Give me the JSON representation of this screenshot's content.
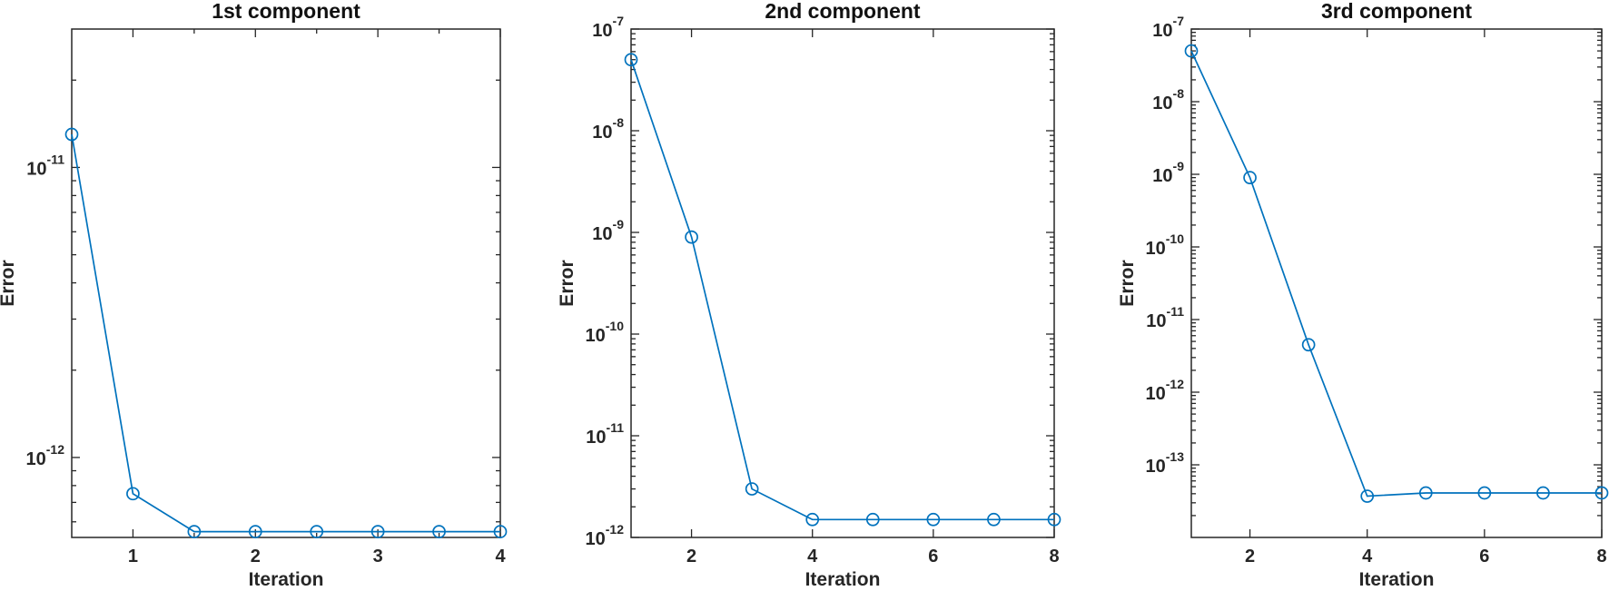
{
  "chart_data": [
    {
      "type": "line",
      "title": "1st component",
      "xlabel": "Iteration",
      "ylabel": "Error",
      "yscale": "log",
      "xlim": [
        0.5,
        4
      ],
      "ylim": [
        5.3e-13,
        3e-11
      ],
      "xticks": [
        "1",
        "2",
        "3",
        "4"
      ],
      "yticks": [
        {
          "base": "10",
          "exp": "-12"
        },
        {
          "base": "10",
          "exp": "-11"
        }
      ],
      "grid": false,
      "color": "#0072BD",
      "marker": "circle",
      "series": [
        {
          "x": [
            0.5,
            1,
            1.5,
            2,
            2.5,
            3,
            3.5,
            4
          ],
          "y": [
            1.3e-11,
            7.5e-13,
            5.55e-13,
            5.55e-13,
            5.55e-13,
            5.55e-13,
            5.55e-13,
            5.55e-13
          ]
        }
      ]
    },
    {
      "type": "line",
      "title": "2nd component",
      "xlabel": "Iteration",
      "ylabel": "Error",
      "yscale": "log",
      "xlim": [
        1,
        8
      ],
      "ylim": [
        1e-12,
        1e-07
      ],
      "xticks": [
        "2",
        "4",
        "6",
        "8"
      ],
      "yticks": [
        {
          "base": "10",
          "exp": "-12"
        },
        {
          "base": "10",
          "exp": "-11"
        },
        {
          "base": "10",
          "exp": "-10"
        },
        {
          "base": "10",
          "exp": "-9"
        },
        {
          "base": "10",
          "exp": "-8"
        },
        {
          "base": "10",
          "exp": "-7"
        }
      ],
      "grid": false,
      "color": "#0072BD",
      "marker": "circle",
      "series": [
        {
          "x": [
            1,
            2,
            3,
            4,
            5,
            6,
            7,
            8
          ],
          "y": [
            5e-08,
            9e-10,
            3e-12,
            1.5e-12,
            1.5e-12,
            1.5e-12,
            1.5e-12,
            1.5e-12
          ]
        }
      ]
    },
    {
      "type": "line",
      "title": "3rd component",
      "xlabel": "Iteration",
      "ylabel": "Error",
      "yscale": "log",
      "xlim": [
        1,
        8
      ],
      "ylim": [
        1e-14,
        1e-07
      ],
      "xticks": [
        "2",
        "4",
        "6",
        "8"
      ],
      "yticks": [
        {
          "base": "10",
          "exp": "-13"
        },
        {
          "base": "10",
          "exp": "-12"
        },
        {
          "base": "10",
          "exp": "-11"
        },
        {
          "base": "10",
          "exp": "-10"
        },
        {
          "base": "10",
          "exp": "-9"
        },
        {
          "base": "10",
          "exp": "-8"
        },
        {
          "base": "10",
          "exp": "-7"
        }
      ],
      "grid": false,
      "color": "#0072BD",
      "marker": "circle",
      "series": [
        {
          "x": [
            1,
            2,
            3,
            4,
            5,
            6,
            7,
            8
          ],
          "y": [
            5e-08,
            9e-10,
            4.5e-12,
            3.7e-14,
            4.1e-14,
            4.1e-14,
            4.1e-14,
            4.1e-14
          ]
        }
      ]
    }
  ]
}
